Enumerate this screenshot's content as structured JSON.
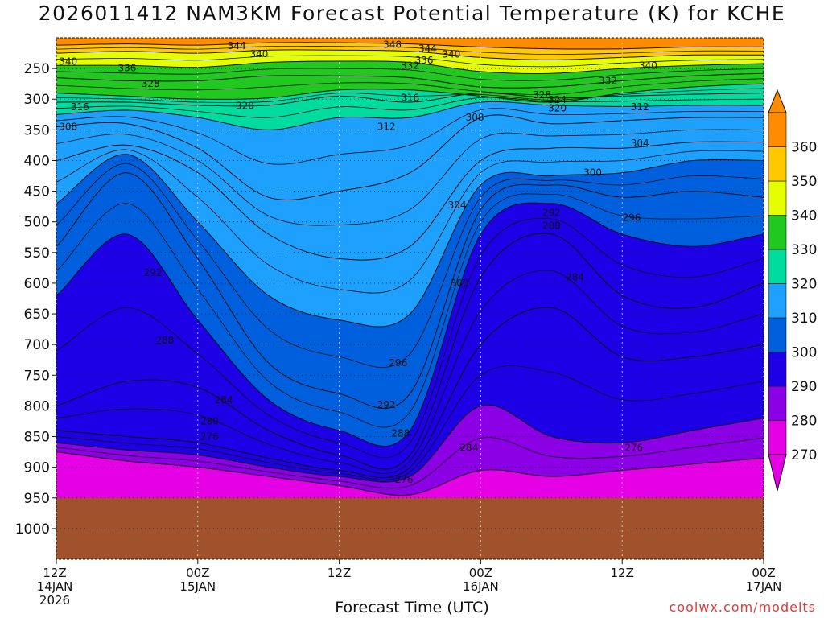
{
  "chart_data": {
    "type": "contour",
    "title": "2026011412 NAM3KM Forecast Potential Temperature (K) for KCHE",
    "xlabel": "Forecast Time (UTC)",
    "ylabel": "",
    "credit": "coolwx.com/modelts",
    "x_range_hours": [
      0,
      60
    ],
    "y_range_hpa": [
      200,
      1050
    ],
    "y_ticks": [
      250,
      300,
      350,
      400,
      450,
      500,
      550,
      600,
      650,
      700,
      750,
      800,
      850,
      900,
      950,
      1000
    ],
    "x_ticks": [
      {
        "hour": 0,
        "lines": [
          "12Z",
          "14JAN",
          "2026"
        ]
      },
      {
        "hour": 12,
        "lines": [
          "00Z",
          "15JAN"
        ]
      },
      {
        "hour": 24,
        "lines": [
          "12Z"
        ]
      },
      {
        "hour": 36,
        "lines": [
          "00Z",
          "16JAN"
        ]
      },
      {
        "hour": 48,
        "lines": [
          "12Z"
        ]
      },
      {
        "hour": 60,
        "lines": [
          "00Z",
          "17JAN"
        ]
      }
    ],
    "colorbar": {
      "levels": [
        270,
        280,
        290,
        300,
        310,
        320,
        330,
        340,
        350,
        360
      ],
      "colors": [
        "#e600e6",
        "#8c00e6",
        "#1e00e6",
        "#005fdc",
        "#1ea0ff",
        "#00dca0",
        "#20c820",
        "#e6ff00",
        "#ffc800",
        "#ff8c00"
      ]
    },
    "hours": [
      0,
      6,
      12,
      18,
      24,
      30,
      36,
      42,
      48,
      54,
      60
    ],
    "isentrope_pressure_hpa": [
      {
        "theta": 276,
        "values": [
          875,
          890,
          900,
          915,
          930,
          945,
          905,
          915,
          905,
          895,
          885
        ]
      },
      {
        "theta": 280,
        "values": [
          860,
          872,
          880,
          900,
          915,
          915,
          800,
          850,
          860,
          840,
          820
        ]
      },
      {
        "theta": 284,
        "values": [
          840,
          850,
          860,
          885,
          905,
          900,
          700,
          640,
          720,
          720,
          700
        ]
      },
      {
        "theta": 288,
        "values": [
          800,
          760,
          770,
          840,
          880,
          880,
          590,
          520,
          620,
          640,
          600
        ]
      },
      {
        "theta": 292,
        "values": [
          620,
          520,
          660,
          790,
          840,
          840,
          520,
          470,
          520,
          540,
          520
        ]
      },
      {
        "theta": 296,
        "values": [
          540,
          420,
          560,
          730,
          780,
          780,
          480,
          440,
          460,
          450,
          460
        ]
      },
      {
        "theta": 300,
        "values": [
          470,
          390,
          500,
          620,
          660,
          650,
          440,
          425,
          420,
          400,
          400
        ]
      },
      {
        "theta": 304,
        "values": [
          400,
          375,
          420,
          520,
          560,
          540,
          400,
          380,
          380,
          370,
          370
        ]
      },
      {
        "theta": 308,
        "values": [
          345,
          340,
          380,
          460,
          450,
          420,
          330,
          340,
          335,
          330,
          330
        ]
      },
      {
        "theta": 312,
        "values": [
          325,
          318,
          330,
          350,
          330,
          330,
          305,
          310,
          312,
          310,
          310
        ]
      },
      {
        "theta": 316,
        "values": [
          305,
          305,
          310,
          310,
          295,
          305,
          290,
          298,
          295,
          292,
          290
        ]
      },
      {
        "theta": 320,
        "values": [
          290,
          295,
          300,
          298,
          285,
          285,
          295,
          305,
          290,
          280,
          275
        ]
      },
      {
        "theta": 328,
        "values": [
          265,
          270,
          270,
          262,
          262,
          265,
          280,
          280,
          270,
          262,
          258
        ]
      },
      {
        "theta": 336,
        "values": [
          245,
          245,
          248,
          240,
          238,
          240,
          255,
          258,
          250,
          245,
          242
        ]
      },
      {
        "theta": 344,
        "values": [
          225,
          222,
          225,
          220,
          220,
          222,
          232,
          236,
          232,
          228,
          228
        ]
      },
      {
        "theta": 352,
        "values": [
          212,
          210,
          212,
          208,
          208,
          210,
          215,
          218,
          218,
          215,
          215
        ]
      }
    ],
    "contour_labels": [
      {
        "text": "344",
        "hour": 15.3,
        "p": 213
      },
      {
        "text": "348",
        "hour": 28.5,
        "p": 211
      },
      {
        "text": "340",
        "hour": 17.2,
        "p": 226
      },
      {
        "text": "344",
        "hour": 31.5,
        "p": 218
      },
      {
        "text": "340",
        "hour": 33.5,
        "p": 227
      },
      {
        "text": "340",
        "hour": 1.0,
        "p": 239
      },
      {
        "text": "336",
        "hour": 31.2,
        "p": 237
      },
      {
        "text": "336",
        "hour": 6.0,
        "p": 249
      },
      {
        "text": "332",
        "hour": 30.0,
        "p": 245
      },
      {
        "text": "340",
        "hour": 50.2,
        "p": 245
      },
      {
        "text": "328",
        "hour": 8.0,
        "p": 275
      },
      {
        "text": "332",
        "hour": 46.8,
        "p": 270
      },
      {
        "text": "328",
        "hour": 41.2,
        "p": 293
      },
      {
        "text": "316",
        "hour": 30.0,
        "p": 298
      },
      {
        "text": "324",
        "hour": 42.5,
        "p": 301
      },
      {
        "text": "316",
        "hour": 2.0,
        "p": 313
      },
      {
        "text": "320",
        "hour": 16.0,
        "p": 311
      },
      {
        "text": "320",
        "hour": 42.5,
        "p": 315
      },
      {
        "text": "312",
        "hour": 49.5,
        "p": 313
      },
      {
        "text": "308",
        "hour": 1.0,
        "p": 345
      },
      {
        "text": "312",
        "hour": 28.0,
        "p": 345
      },
      {
        "text": "308",
        "hour": 35.5,
        "p": 330
      },
      {
        "text": "304",
        "hour": 49.5,
        "p": 372
      },
      {
        "text": "300",
        "hour": 45.5,
        "p": 420
      },
      {
        "text": "304",
        "hour": 34.0,
        "p": 473
      },
      {
        "text": "292",
        "hour": 42.0,
        "p": 485
      },
      {
        "text": "296",
        "hour": 48.8,
        "p": 493
      },
      {
        "text": "288",
        "hour": 42.0,
        "p": 506
      },
      {
        "text": "292",
        "hour": 8.2,
        "p": 583
      },
      {
        "text": "300",
        "hour": 34.2,
        "p": 600
      },
      {
        "text": "284",
        "hour": 44.0,
        "p": 590
      },
      {
        "text": "288",
        "hour": 9.2,
        "p": 693
      },
      {
        "text": "296",
        "hour": 29.0,
        "p": 730
      },
      {
        "text": "284",
        "hour": 14.2,
        "p": 790
      },
      {
        "text": "292",
        "hour": 28.0,
        "p": 798
      },
      {
        "text": "280",
        "hour": 13.0,
        "p": 825
      },
      {
        "text": "276",
        "hour": 13.0,
        "p": 850
      },
      {
        "text": "288",
        "hour": 29.2,
        "p": 845
      },
      {
        "text": "284",
        "hour": 35.0,
        "p": 868
      },
      {
        "text": "276",
        "hour": 49.0,
        "p": 868
      },
      {
        "text": "276",
        "hour": 29.5,
        "p": 920
      }
    ],
    "ground_pressure_hpa": 950
  }
}
